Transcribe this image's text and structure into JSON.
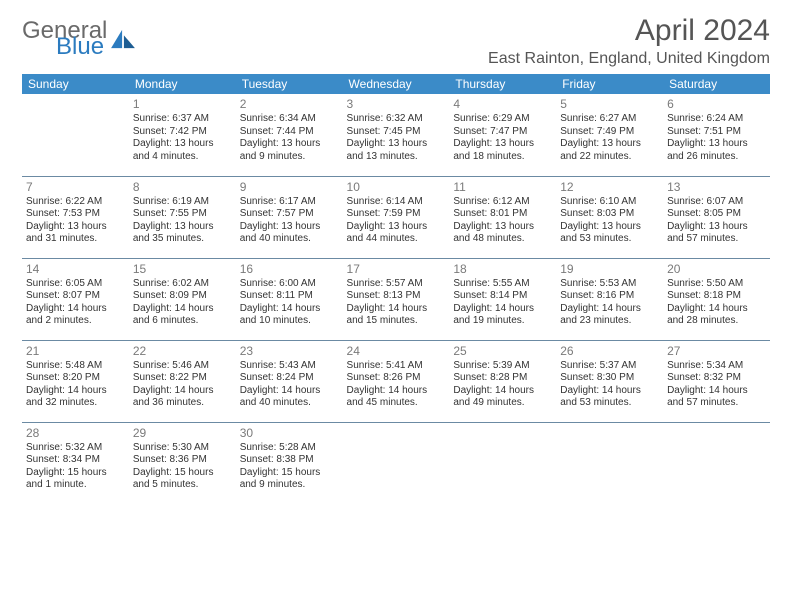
{
  "logo": {
    "general": "General",
    "blue": "Blue"
  },
  "header": {
    "month_title": "April 2024",
    "location": "East Rainton, England, United Kingdom"
  },
  "weekdays": [
    "Sunday",
    "Monday",
    "Tuesday",
    "Wednesday",
    "Thursday",
    "Friday",
    "Saturday"
  ],
  "colors": {
    "header_bg": "#3b8bc8",
    "rule": "#6b8aa3",
    "text": "#333333",
    "muted": "#7a7a7a"
  },
  "start_weekday": 1,
  "days": [
    {
      "n": 1,
      "sunrise": "6:37 AM",
      "sunset": "7:42 PM",
      "daylight": "13 hours and 4 minutes."
    },
    {
      "n": 2,
      "sunrise": "6:34 AM",
      "sunset": "7:44 PM",
      "daylight": "13 hours and 9 minutes."
    },
    {
      "n": 3,
      "sunrise": "6:32 AM",
      "sunset": "7:45 PM",
      "daylight": "13 hours and 13 minutes."
    },
    {
      "n": 4,
      "sunrise": "6:29 AM",
      "sunset": "7:47 PM",
      "daylight": "13 hours and 18 minutes."
    },
    {
      "n": 5,
      "sunrise": "6:27 AM",
      "sunset": "7:49 PM",
      "daylight": "13 hours and 22 minutes."
    },
    {
      "n": 6,
      "sunrise": "6:24 AM",
      "sunset": "7:51 PM",
      "daylight": "13 hours and 26 minutes."
    },
    {
      "n": 7,
      "sunrise": "6:22 AM",
      "sunset": "7:53 PM",
      "daylight": "13 hours and 31 minutes."
    },
    {
      "n": 8,
      "sunrise": "6:19 AM",
      "sunset": "7:55 PM",
      "daylight": "13 hours and 35 minutes."
    },
    {
      "n": 9,
      "sunrise": "6:17 AM",
      "sunset": "7:57 PM",
      "daylight": "13 hours and 40 minutes."
    },
    {
      "n": 10,
      "sunrise": "6:14 AM",
      "sunset": "7:59 PM",
      "daylight": "13 hours and 44 minutes."
    },
    {
      "n": 11,
      "sunrise": "6:12 AM",
      "sunset": "8:01 PM",
      "daylight": "13 hours and 48 minutes."
    },
    {
      "n": 12,
      "sunrise": "6:10 AM",
      "sunset": "8:03 PM",
      "daylight": "13 hours and 53 minutes."
    },
    {
      "n": 13,
      "sunrise": "6:07 AM",
      "sunset": "8:05 PM",
      "daylight": "13 hours and 57 minutes."
    },
    {
      "n": 14,
      "sunrise": "6:05 AM",
      "sunset": "8:07 PM",
      "daylight": "14 hours and 2 minutes."
    },
    {
      "n": 15,
      "sunrise": "6:02 AM",
      "sunset": "8:09 PM",
      "daylight": "14 hours and 6 minutes."
    },
    {
      "n": 16,
      "sunrise": "6:00 AM",
      "sunset": "8:11 PM",
      "daylight": "14 hours and 10 minutes."
    },
    {
      "n": 17,
      "sunrise": "5:57 AM",
      "sunset": "8:13 PM",
      "daylight": "14 hours and 15 minutes."
    },
    {
      "n": 18,
      "sunrise": "5:55 AM",
      "sunset": "8:14 PM",
      "daylight": "14 hours and 19 minutes."
    },
    {
      "n": 19,
      "sunrise": "5:53 AM",
      "sunset": "8:16 PM",
      "daylight": "14 hours and 23 minutes."
    },
    {
      "n": 20,
      "sunrise": "5:50 AM",
      "sunset": "8:18 PM",
      "daylight": "14 hours and 28 minutes."
    },
    {
      "n": 21,
      "sunrise": "5:48 AM",
      "sunset": "8:20 PM",
      "daylight": "14 hours and 32 minutes."
    },
    {
      "n": 22,
      "sunrise": "5:46 AM",
      "sunset": "8:22 PM",
      "daylight": "14 hours and 36 minutes."
    },
    {
      "n": 23,
      "sunrise": "5:43 AM",
      "sunset": "8:24 PM",
      "daylight": "14 hours and 40 minutes."
    },
    {
      "n": 24,
      "sunrise": "5:41 AM",
      "sunset": "8:26 PM",
      "daylight": "14 hours and 45 minutes."
    },
    {
      "n": 25,
      "sunrise": "5:39 AM",
      "sunset": "8:28 PM",
      "daylight": "14 hours and 49 minutes."
    },
    {
      "n": 26,
      "sunrise": "5:37 AM",
      "sunset": "8:30 PM",
      "daylight": "14 hours and 53 minutes."
    },
    {
      "n": 27,
      "sunrise": "5:34 AM",
      "sunset": "8:32 PM",
      "daylight": "14 hours and 57 minutes."
    },
    {
      "n": 28,
      "sunrise": "5:32 AM",
      "sunset": "8:34 PM",
      "daylight": "15 hours and 1 minute."
    },
    {
      "n": 29,
      "sunrise": "5:30 AM",
      "sunset": "8:36 PM",
      "daylight": "15 hours and 5 minutes."
    },
    {
      "n": 30,
      "sunrise": "5:28 AM",
      "sunset": "8:38 PM",
      "daylight": "15 hours and 9 minutes."
    }
  ],
  "labels": {
    "sunrise_prefix": "Sunrise: ",
    "sunset_prefix": "Sunset: ",
    "daylight_prefix": "Daylight: "
  }
}
